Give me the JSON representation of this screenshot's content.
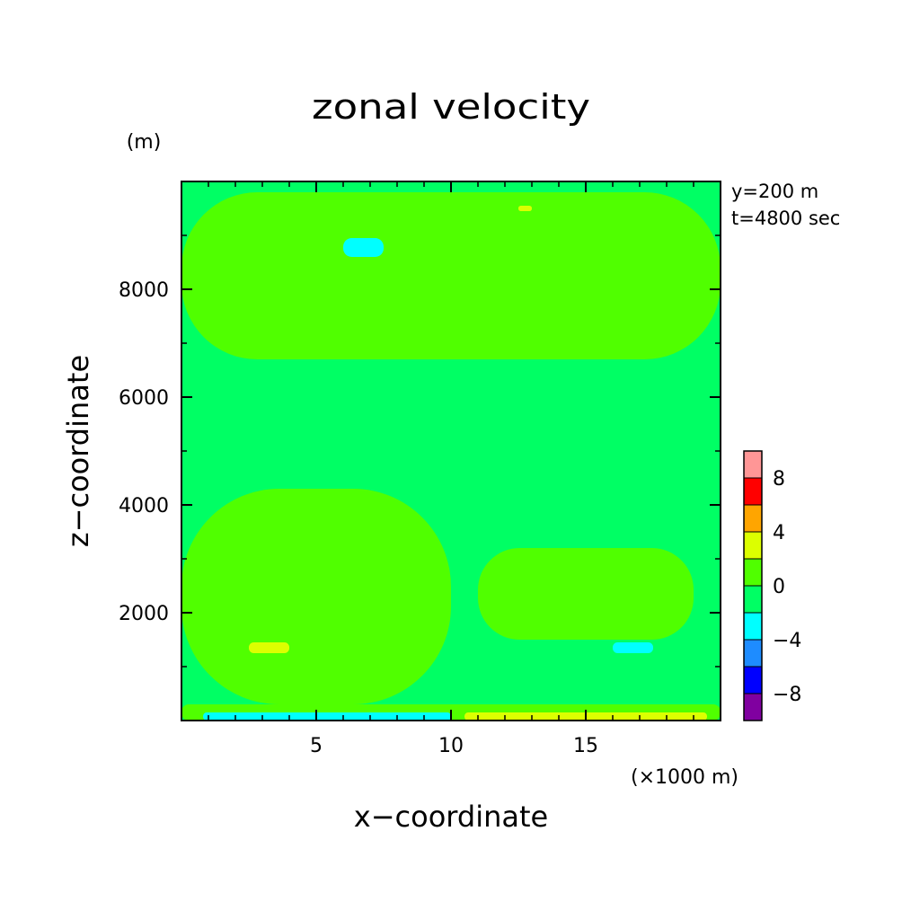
{
  "chart_data": {
    "type": "heatmap",
    "title": "zonal velocity",
    "xlabel": "x−coordinate",
    "ylabel": "z−coordinate",
    "x_unit": "(×1000 m)",
    "y_unit": "(m)",
    "annotations": [
      "y=200 m",
      "t=4800 sec"
    ],
    "xlim": [
      0,
      20
    ],
    "ylim": [
      0,
      10000
    ],
    "xticks": [
      5,
      10,
      15
    ],
    "yticks": [
      2000,
      4000,
      6000,
      8000
    ],
    "colorbar": {
      "bounds": [
        -10,
        -8,
        -6,
        -4,
        -2,
        0,
        2,
        4,
        6,
        8,
        10
      ],
      "labels": [
        "−8",
        "−4",
        "0",
        "4",
        "8"
      ],
      "label_values": [
        -8,
        -4,
        0,
        4,
        8
      ],
      "colors": [
        "#8000a0",
        "#0000ff",
        "#1e8cff",
        "#00ffff",
        "#00ff64",
        "#50ff00",
        "#dcff00",
        "#ffa500",
        "#ff0000",
        "#ff9696"
      ]
    },
    "field": {
      "background_level": [
        -2,
        0
      ],
      "regions": [
        {
          "level": [
            0,
            2
          ],
          "x": [
            0,
            20
          ],
          "z": [
            0,
            300
          ]
        },
        {
          "level": [
            0,
            2
          ],
          "x": [
            0,
            10
          ],
          "z": [
            300,
            4300
          ]
        },
        {
          "level": [
            0,
            2
          ],
          "x": [
            11,
            19
          ],
          "z": [
            1500,
            3200
          ]
        },
        {
          "level": [
            0,
            2
          ],
          "x": [
            0,
            20
          ],
          "z": [
            6700,
            9800
          ]
        },
        {
          "level": [
            -4,
            -2
          ],
          "x": [
            0.8,
            10
          ],
          "z": [
            0,
            150
          ]
        },
        {
          "level": [
            2,
            4
          ],
          "x": [
            10.5,
            19.5
          ],
          "z": [
            0,
            150
          ]
        },
        {
          "level": [
            2,
            4
          ],
          "x": [
            2.5,
            4
          ],
          "z": [
            1250,
            1450
          ]
        },
        {
          "level": [
            -4,
            -2
          ],
          "x": [
            16,
            17.5
          ],
          "z": [
            1250,
            1450
          ]
        },
        {
          "level": [
            -4,
            -2
          ],
          "x": [
            6,
            7.5
          ],
          "z": [
            8600,
            8950
          ]
        },
        {
          "level": [
            2,
            4
          ],
          "x": [
            12.5,
            13
          ],
          "z": [
            9450,
            9550
          ]
        }
      ]
    }
  }
}
